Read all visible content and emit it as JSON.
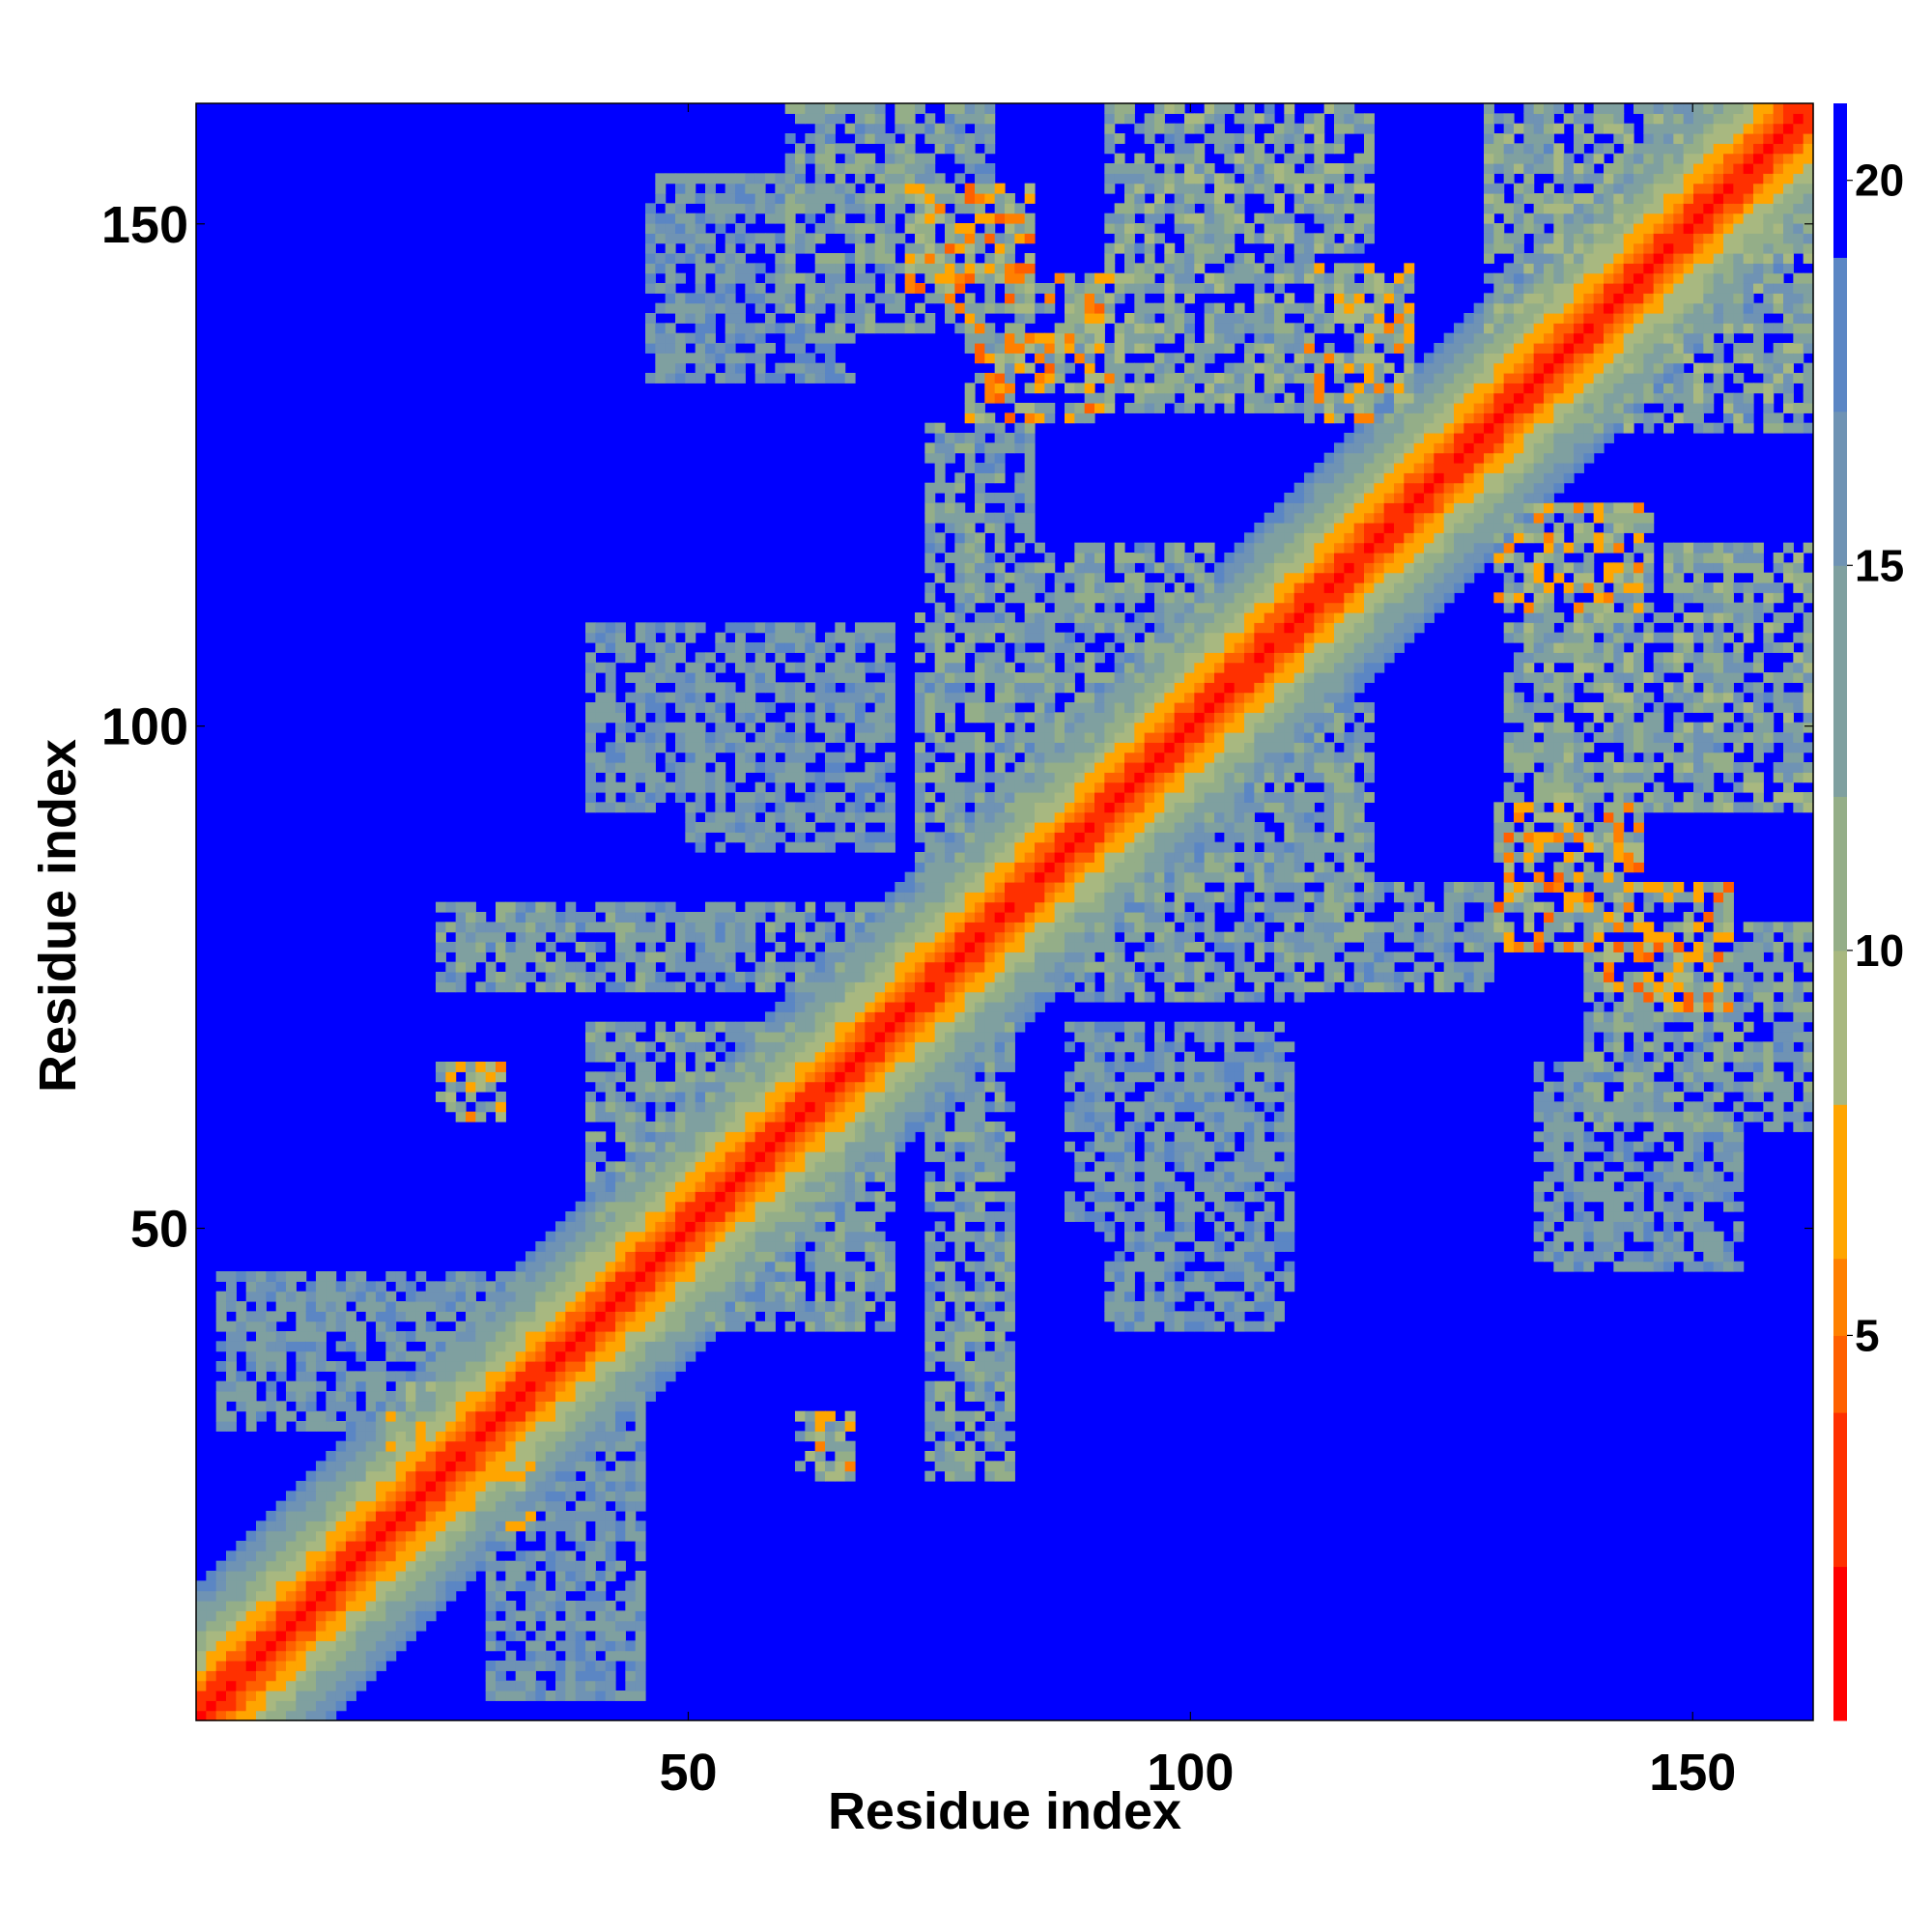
{
  "chart_data": {
    "type": "heatmap",
    "title": "",
    "xlabel": "Residue index",
    "ylabel": "Residue index",
    "xlim": [
      1,
      162
    ],
    "ylim": [
      1,
      162
    ],
    "x_ticks": [
      50,
      100,
      150
    ],
    "y_ticks": [
      50,
      100,
      150
    ],
    "n_residues": 162,
    "value_min": 0,
    "value_max": 21,
    "background_value": 21,
    "colorbar": {
      "ticks": [
        5,
        10,
        15,
        20
      ],
      "bands": [
        {
          "max": 2,
          "color": "#ff0000"
        },
        {
          "max": 4,
          "color": "#ff3000"
        },
        {
          "max": 5,
          "color": "#ff6000"
        },
        {
          "max": 6,
          "color": "#ff8000"
        },
        {
          "max": 8,
          "color": "#ffa500"
        },
        {
          "max": 10,
          "color": "#a8b880"
        },
        {
          "max": 12,
          "color": "#94ae88"
        },
        {
          "max": 15,
          "color": "#7fa0a0"
        },
        {
          "max": 17,
          "color": "#6f93b4"
        },
        {
          "max": 19,
          "color": "#5b86c4"
        },
        {
          "max": 21,
          "color": "#0000ff"
        }
      ]
    },
    "features": {
      "diagonal_band_halfwidth": 13,
      "blocks": [
        {
          "i": [
            72,
            84
          ],
          "j": [
            142,
            154
          ],
          "min": 4
        },
        {
          "i": [
            112,
            122
          ],
          "j": [
            136,
            146
          ],
          "min": 5
        },
        {
          "i": [
            131,
            145
          ],
          "j": [
            78,
            92
          ],
          "min": 4
        },
        {
          "i": [
            131,
            141
          ],
          "j": [
            112,
            122
          ],
          "min": 5
        },
        {
          "i": [
            24,
            34
          ],
          "j": [
            20,
            30
          ],
          "min": 6
        },
        {
          "i": [
            61,
            66
          ],
          "j": [
            26,
            31
          ],
          "min": 5
        },
        {
          "i": [
            25,
            29
          ],
          "j": [
            63,
            66
          ],
          "min": 6
        },
        {
          "i": [
            73,
            95
          ],
          "j": [
            85,
            112
          ],
          "min": 10
        },
        {
          "i": [
            95,
            118
          ],
          "j": [
            78,
            102
          ],
          "min": 10
        },
        {
          "i": [
            92,
            118
          ],
          "j": [
            148,
            162
          ],
          "min": 9
        },
        {
          "i": [
            132,
            160
          ],
          "j": [
            92,
            112
          ],
          "min": 9
        },
        {
          "i": [
            130,
            162
          ],
          "j": [
            138,
            162
          ],
          "min": 9
        },
        {
          "i": [
            60,
            80
          ],
          "j": [
            140,
            162
          ],
          "min": 10
        },
        {
          "i": [
            25,
            40
          ],
          "j": [
            74,
            82
          ],
          "min": 10
        },
        {
          "i": [
            40,
            75
          ],
          "j": [
            74,
            82
          ],
          "min": 11
        },
        {
          "i": [
            90,
            130
          ],
          "j": [
            74,
            84
          ],
          "min": 11
        },
        {
          "i": [
            3,
            40
          ],
          "j": [
            30,
            45
          ],
          "min": 12
        },
        {
          "i": [
            45,
            70
          ],
          "j": [
            40,
            70
          ],
          "min": 10
        },
        {
          "i": [
            40,
            60
          ],
          "j": [
            92,
            110
          ],
          "min": 12
        },
        {
          "i": [
            88,
            110
          ],
          "j": [
            50,
            70
          ],
          "min": 12
        },
        {
          "i": [
            135,
            155
          ],
          "j": [
            46,
            66
          ],
          "min": 12
        }
      ]
    }
  }
}
